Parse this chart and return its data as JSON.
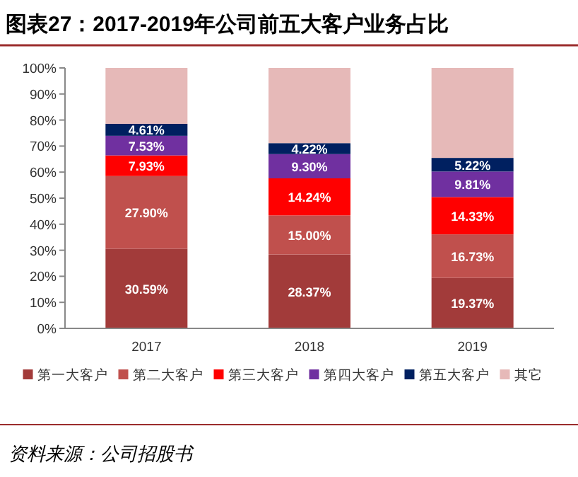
{
  "chart_data": {
    "type": "bar",
    "stacked": true,
    "title": "图表27：2017-2019年公司前五大客户业务占比",
    "categories": [
      "2017",
      "2018",
      "2019"
    ],
    "series": [
      {
        "name": "第一大客户",
        "color": "#a23b3a",
        "values": [
          30.59,
          28.37,
          19.37
        ],
        "value_labels": [
          "30.59%",
          "28.37%",
          "19.37%"
        ]
      },
      {
        "name": "第二大客户",
        "color": "#c0504d",
        "values": [
          27.9,
          15.0,
          16.73
        ],
        "value_labels": [
          "27.90%",
          "15.00%",
          "16.73%"
        ]
      },
      {
        "name": "第三大客户",
        "color": "#ff0000",
        "values": [
          7.93,
          14.24,
          14.33
        ],
        "value_labels": [
          "7.93%",
          "14.24%",
          "14.33%"
        ]
      },
      {
        "name": "第四大客户",
        "color": "#7030a0",
        "values": [
          7.53,
          9.3,
          9.81
        ],
        "value_labels": [
          "7.53%",
          "9.30%",
          "9.81%"
        ]
      },
      {
        "name": "第五大客户",
        "color": "#002060",
        "values": [
          4.61,
          4.22,
          5.22
        ],
        "value_labels": [
          "4.61%",
          "4.22%",
          "5.22%"
        ]
      },
      {
        "name": "其它",
        "color": "#e6b9b8",
        "values": [
          21.44,
          28.87,
          34.54
        ],
        "value_labels": [
          null,
          null,
          null
        ]
      }
    ],
    "ylim": [
      0,
      100
    ],
    "yticks": [
      {
        "value": 0,
        "label": "0%"
      },
      {
        "value": 10,
        "label": "10%"
      },
      {
        "value": 20,
        "label": "20%"
      },
      {
        "value": 30,
        "label": "30%"
      },
      {
        "value": 40,
        "label": "40%"
      },
      {
        "value": 50,
        "label": "50%"
      },
      {
        "value": 60,
        "label": "60%"
      },
      {
        "value": 70,
        "label": "70%"
      },
      {
        "value": 80,
        "label": "80%"
      },
      {
        "value": 90,
        "label": "90%"
      },
      {
        "value": 100,
        "label": "100%"
      }
    ],
    "legend": "bottom",
    "grid": false,
    "annotations": [
      "资料来源：公司招股书"
    ]
  }
}
